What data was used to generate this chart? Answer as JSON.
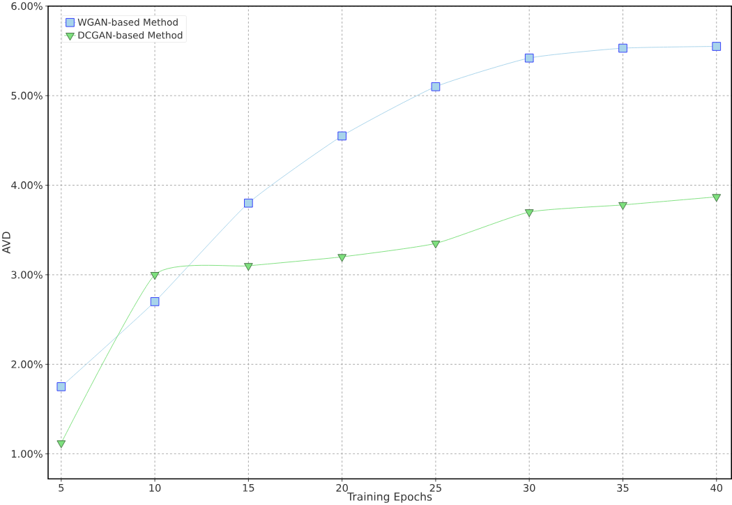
{
  "chart_data": {
    "type": "line",
    "xlabel": "Training Epochs",
    "ylabel": "AVD",
    "x": [
      5,
      10,
      15,
      20,
      25,
      30,
      35,
      40
    ],
    "series": [
      {
        "name": "WGAN-based Method",
        "color": "#a8d4ea",
        "marker": "square",
        "values": [
          1.75,
          2.7,
          3.8,
          4.55,
          5.1,
          5.42,
          5.53,
          5.55
        ]
      },
      {
        "name": "DCGAN-based Method",
        "color": "#7ee07e",
        "marker": "triangle",
        "values": [
          1.12,
          3.0,
          3.1,
          3.2,
          3.35,
          3.7,
          3.78,
          3.87
        ]
      }
    ],
    "xlim": [
      4.3,
      40.8
    ],
    "ylim": [
      0.72,
      6.0
    ],
    "xticks": [
      5,
      10,
      15,
      20,
      25,
      30,
      35,
      40
    ],
    "yticks": [
      {
        "value": 1,
        "label": "1.00%"
      },
      {
        "value": 2,
        "label": "2.00%"
      },
      {
        "value": 3,
        "label": "3.00%"
      },
      {
        "value": 4,
        "label": "4.00%"
      },
      {
        "value": 5,
        "label": "5.00%"
      },
      {
        "value": 6,
        "label": "6.00%"
      }
    ],
    "grid": true,
    "legend": "top left",
    "line_style": "solid"
  }
}
